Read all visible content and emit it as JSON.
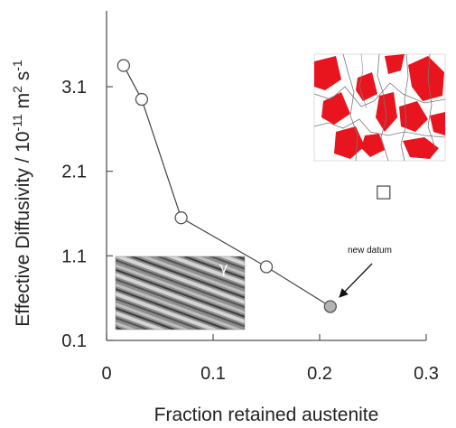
{
  "chart_data": {
    "type": "line",
    "title": "",
    "xlabel": "Fraction retained austenite",
    "ylabel_main": "Effective Diffusivity / 10",
    "ylabel_exp1": "-11",
    "ylabel_mid": " m",
    "ylabel_exp2": "2",
    "ylabel_end": " s",
    "ylabel_exp3": "-1",
    "xlim": [
      0,
      0.3
    ],
    "ylim": [
      0.1,
      4.0
    ],
    "xticks": [
      "0",
      "0.1",
      "0.2",
      "0.3"
    ],
    "xtick_values": [
      0,
      0.1,
      0.2,
      0.3
    ],
    "yticks": [
      "0.1",
      "1.1",
      "2.1",
      "3.1"
    ],
    "ytick_values": [
      0.1,
      1.1,
      2.1,
      3.1
    ],
    "grid": false,
    "series": [
      {
        "marker": "open-circle",
        "x": [
          0.016,
          0.033,
          0.07,
          0.15
        ],
        "y": [
          3.35,
          2.95,
          1.55,
          0.97
        ]
      },
      {
        "marker": "gray-circle",
        "x": [
          0.21
        ],
        "y": [
          0.5
        ]
      },
      {
        "marker": "open-square",
        "x": [
          0.26
        ],
        "y": [
          1.85
        ]
      }
    ],
    "annotation": "new datum",
    "inset_top_right_label": "",
    "inset_bottom_left_label": "γ"
  },
  "colors": {
    "axis": "#555555",
    "line": "#444444",
    "marker_fill": "#ffffff",
    "marker_edge": "#555555",
    "new_datum_fill": "#b3b3b3",
    "ferrite_red": "#e8141e"
  }
}
